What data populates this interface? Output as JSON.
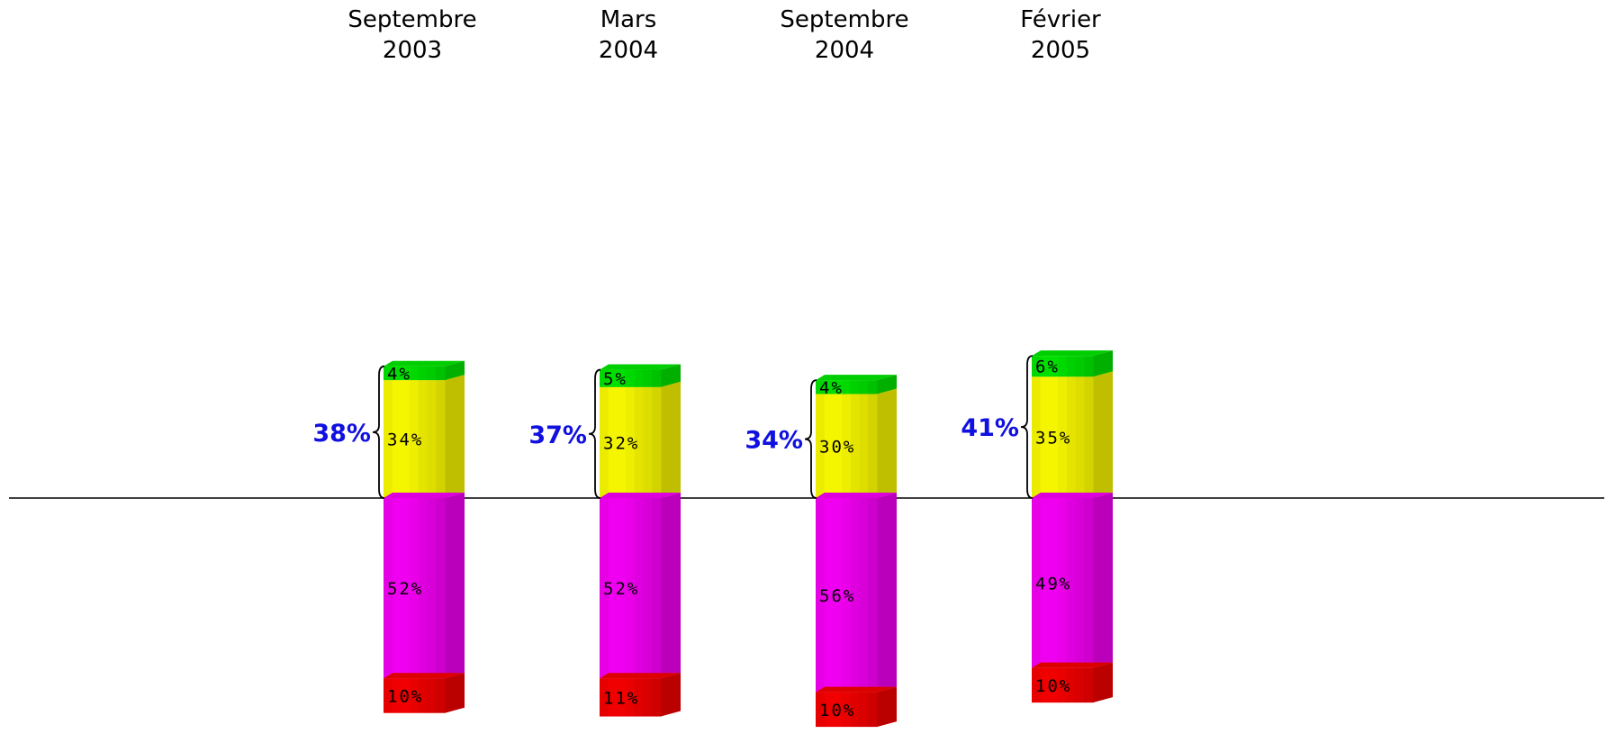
{
  "chart_data": {
    "type": "bar",
    "stacked": true,
    "diverging": true,
    "categories": [
      [
        "Septembre",
        "2003"
      ],
      [
        "Mars",
        "2004"
      ],
      [
        "Septembre",
        "2004"
      ],
      [
        "Février",
        "2005"
      ]
    ],
    "series": [
      {
        "side": "positive",
        "color": "#f5f500",
        "values": [
          34,
          32,
          30,
          35
        ]
      },
      {
        "side": "positive",
        "color": "#00e000",
        "values": [
          4,
          5,
          4,
          6
        ]
      },
      {
        "side": "negative",
        "color": "#f000f0",
        "values": [
          52,
          52,
          56,
          49
        ]
      },
      {
        "side": "negative",
        "color": "#f00000",
        "values": [
          10,
          11,
          10,
          10
        ]
      }
    ],
    "positive_totals": [
      38,
      37,
      34,
      41
    ],
    "value_suffix": "%",
    "total_label_color": "#1010e0",
    "grid": false,
    "legend": "none",
    "title": "",
    "xlabel": "",
    "ylabel": ""
  }
}
